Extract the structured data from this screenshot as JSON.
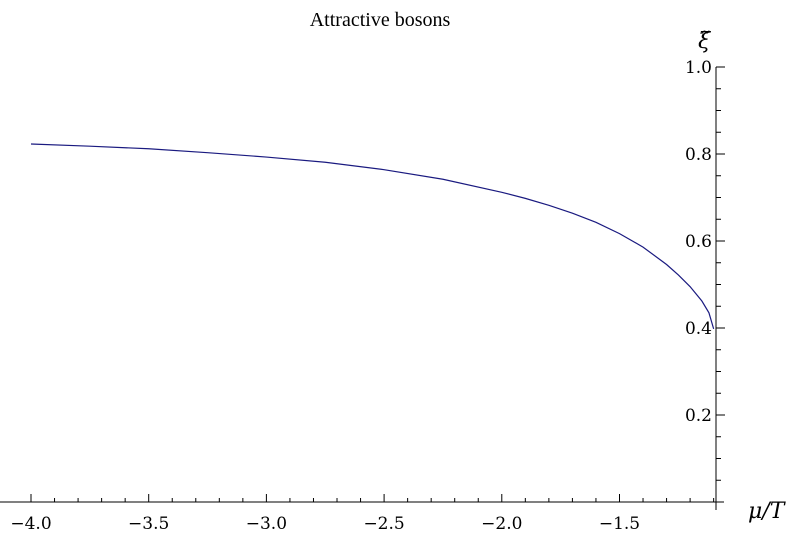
{
  "chart_data": {
    "type": "line",
    "title": "Attractive  bosons",
    "xlabel": "μ/T",
    "ylabel": "ξ̃",
    "xlim": [
      -4.0,
      -1.09
    ],
    "ylim": [
      0.0,
      1.0
    ],
    "x_ticks": [
      "−4.0",
      "−3.5",
      "−3.0",
      "−2.5",
      "−2.0",
      "−1.5"
    ],
    "x_tick_values": [
      -4.0,
      -3.5,
      -3.0,
      -2.5,
      -2.0,
      -1.5
    ],
    "y_ticks": [
      "0.2",
      "0.4",
      "0.6",
      "0.8",
      "1.0"
    ],
    "y_tick_values": [
      0.2,
      0.4,
      0.6,
      0.8,
      1.0
    ],
    "grid": false,
    "line_color": "#1a1a80",
    "series": [
      {
        "x": [
          -4.0,
          -3.75,
          -3.5,
          -3.25,
          -3.0,
          -2.75,
          -2.5,
          -2.25,
          -2.0,
          -1.9,
          -1.8,
          -1.7,
          -1.6,
          -1.5,
          -1.4,
          -1.3,
          -1.25,
          -1.2,
          -1.15,
          -1.12,
          -1.1
        ],
        "values": [
          0.823,
          0.818,
          0.812,
          0.803,
          0.793,
          0.781,
          0.764,
          0.742,
          0.712,
          0.698,
          0.682,
          0.664,
          0.643,
          0.617,
          0.586,
          0.546,
          0.522,
          0.495,
          0.462,
          0.435,
          0.398
        ]
      }
    ]
  }
}
